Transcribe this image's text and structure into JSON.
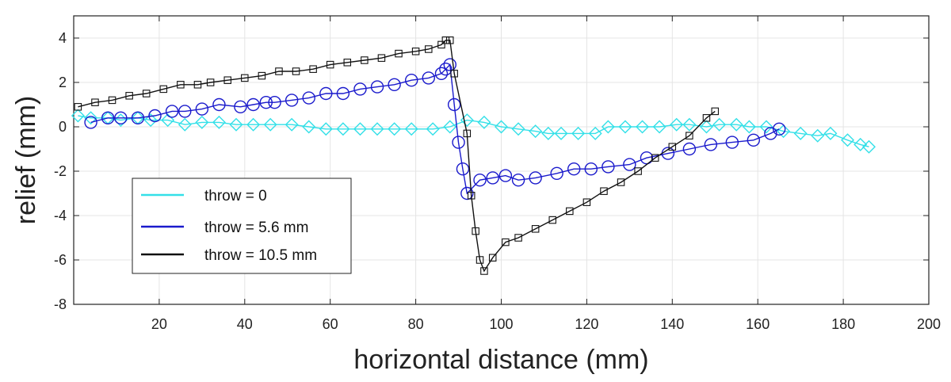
{
  "chart_data": {
    "type": "line",
    "title": "",
    "xlabel": "horizontal distance (mm)",
    "ylabel": "relief (mm)",
    "xlim": [
      0,
      200
    ],
    "ylim": [
      -8,
      5
    ],
    "xticks": [
      20,
      40,
      60,
      80,
      100,
      120,
      140,
      160,
      180,
      200
    ],
    "yticks": [
      -8,
      -6,
      -4,
      -2,
      0,
      2,
      4
    ],
    "grid": true,
    "legend_position": "lower-left",
    "series": [
      {
        "name": "throw = 0",
        "color": "#33e0e8",
        "marker": "diamond",
        "x": [
          1,
          4,
          8,
          11,
          15,
          18,
          22,
          26,
          30,
          34,
          38,
          42,
          46,
          51,
          55,
          59,
          63,
          67,
          71,
          75,
          79,
          84,
          88,
          92,
          96,
          100,
          104,
          108,
          111,
          114,
          118,
          122,
          125,
          129,
          133,
          137,
          141,
          144,
          148,
          151,
          155,
          158,
          162,
          166,
          170,
          174,
          177,
          181,
          184,
          186
        ],
        "y": [
          0.5,
          0.4,
          0.4,
          0.3,
          0.4,
          0.3,
          0.3,
          0.1,
          0.2,
          0.2,
          0.1,
          0.1,
          0.1,
          0.1,
          0.0,
          -0.1,
          -0.1,
          -0.1,
          -0.1,
          -0.1,
          -0.1,
          -0.1,
          0.0,
          0.3,
          0.2,
          0.0,
          -0.1,
          -0.2,
          -0.3,
          -0.3,
          -0.3,
          -0.3,
          0.0,
          0.0,
          0.0,
          0.0,
          0.1,
          0.1,
          0.0,
          0.1,
          0.1,
          0.0,
          0.0,
          -0.2,
          -0.3,
          -0.4,
          -0.3,
          -0.6,
          -0.8,
          -0.9
        ]
      },
      {
        "name": "throw = 5.6 mm",
        "color": "#1a1acc",
        "marker": "circle",
        "x": [
          4,
          8,
          11,
          15,
          19,
          23,
          26,
          30,
          34,
          39,
          42,
          45,
          47,
          51,
          55,
          59,
          63,
          67,
          71,
          75,
          79,
          83,
          86,
          87,
          88,
          89,
          90,
          91,
          92,
          95,
          98,
          101,
          104,
          108,
          113,
          117,
          121,
          125,
          130,
          134,
          139,
          144,
          149,
          154,
          159,
          163,
          165
        ],
        "y": [
          0.2,
          0.4,
          0.4,
          0.4,
          0.5,
          0.7,
          0.7,
          0.8,
          1.0,
          0.9,
          1.0,
          1.1,
          1.1,
          1.2,
          1.3,
          1.5,
          1.5,
          1.7,
          1.8,
          1.9,
          2.1,
          2.2,
          2.4,
          2.6,
          2.8,
          1.0,
          -0.7,
          -1.9,
          -3.0,
          -2.4,
          -2.3,
          -2.2,
          -2.4,
          -2.3,
          -2.1,
          -1.9,
          -1.9,
          -1.8,
          -1.7,
          -1.4,
          -1.2,
          -1.0,
          -0.8,
          -0.7,
          -0.6,
          -0.3,
          -0.1
        ]
      },
      {
        "name": "throw = 10.5 mm",
        "color": "#111111",
        "marker": "square",
        "x": [
          1,
          5,
          9,
          13,
          17,
          21,
          25,
          29,
          32,
          36,
          40,
          44,
          48,
          52,
          56,
          60,
          64,
          68,
          72,
          76,
          80,
          83,
          86,
          87,
          88,
          89,
          92,
          93,
          94,
          95,
          96,
          98,
          101,
          104,
          108,
          112,
          116,
          120,
          124,
          128,
          132,
          136,
          140,
          144,
          148,
          150
        ],
        "y": [
          0.9,
          1.1,
          1.2,
          1.4,
          1.5,
          1.7,
          1.9,
          1.9,
          2.0,
          2.1,
          2.2,
          2.3,
          2.5,
          2.5,
          2.6,
          2.8,
          2.9,
          3.0,
          3.1,
          3.3,
          3.4,
          3.5,
          3.7,
          3.9,
          3.9,
          2.4,
          -0.3,
          -3.1,
          -4.7,
          -6.0,
          -6.5,
          -5.9,
          -5.2,
          -5.0,
          -4.6,
          -4.2,
          -3.8,
          -3.4,
          -2.9,
          -2.5,
          -2.0,
          -1.4,
          -0.9,
          -0.4,
          0.4,
          0.7
        ]
      }
    ]
  }
}
